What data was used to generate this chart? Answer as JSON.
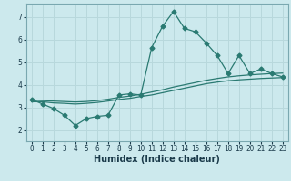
{
  "xlabel": "Humidex (Indice chaleur)",
  "background_color": "#cce9ed",
  "grid_color": "#b8d8dc",
  "line_color": "#2a7a72",
  "xlim": [
    -0.5,
    23.5
  ],
  "ylim": [
    1.5,
    7.6
  ],
  "x_ticks": [
    0,
    1,
    2,
    3,
    4,
    5,
    6,
    7,
    8,
    9,
    10,
    11,
    12,
    13,
    14,
    15,
    16,
    17,
    18,
    19,
    20,
    21,
    22,
    23
  ],
  "y_ticks": [
    2,
    3,
    4,
    5,
    6,
    7
  ],
  "series1_x": [
    0,
    1,
    2,
    3,
    4,
    5,
    6,
    7,
    8,
    9,
    10,
    11,
    12,
    13,
    14,
    15,
    16,
    17,
    18,
    19,
    20,
    21,
    22,
    23
  ],
  "series1_y": [
    3.35,
    3.15,
    2.95,
    2.65,
    2.2,
    2.5,
    2.6,
    2.65,
    3.55,
    3.6,
    3.55,
    5.65,
    6.6,
    7.25,
    6.5,
    6.35,
    5.85,
    5.3,
    4.5,
    5.3,
    4.5,
    4.7,
    4.5,
    4.35
  ],
  "series2_x": [
    0,
    1,
    2,
    3,
    4,
    5,
    6,
    7,
    8,
    9,
    10,
    11,
    12,
    13,
    14,
    15,
    16,
    17,
    18,
    19,
    20,
    21,
    22,
    23
  ],
  "series2_y": [
    3.25,
    3.25,
    3.2,
    3.18,
    3.15,
    3.18,
    3.22,
    3.28,
    3.35,
    3.4,
    3.48,
    3.55,
    3.65,
    3.75,
    3.85,
    3.95,
    4.05,
    4.12,
    4.18,
    4.22,
    4.25,
    4.28,
    4.3,
    4.32
  ],
  "series3_x": [
    0,
    1,
    2,
    3,
    4,
    5,
    6,
    7,
    8,
    9,
    10,
    11,
    12,
    13,
    14,
    15,
    16,
    17,
    18,
    19,
    20,
    21,
    22,
    23
  ],
  "series3_y": [
    3.32,
    3.3,
    3.28,
    3.26,
    3.24,
    3.26,
    3.3,
    3.36,
    3.44,
    3.5,
    3.58,
    3.68,
    3.78,
    3.9,
    4.0,
    4.1,
    4.2,
    4.28,
    4.35,
    4.4,
    4.44,
    4.47,
    4.5,
    4.52
  ],
  "xlabel_fontsize": 7,
  "tick_fontsize": 5.5
}
